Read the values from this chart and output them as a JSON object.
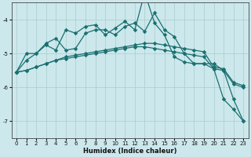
{
  "xlabel": "Humidex (Indice chaleur)",
  "background_color": "#cce8ec",
  "grid_color": "#aacccc",
  "line_color": "#1a7070",
  "xlim": [
    -0.5,
    23.5
  ],
  "ylim": [
    -7.5,
    -3.5
  ],
  "yticks": [
    -7,
    -6,
    -5,
    -4
  ],
  "xticks": [
    0,
    1,
    2,
    3,
    4,
    5,
    6,
    7,
    8,
    9,
    10,
    11,
    12,
    13,
    14,
    15,
    16,
    17,
    18,
    19,
    20,
    21,
    22,
    23
  ],
  "series1_x": [
    0,
    1,
    2,
    3,
    4,
    5,
    6,
    7,
    8,
    9,
    10,
    11,
    12,
    13,
    14,
    15,
    16,
    17,
    18,
    19,
    20,
    21,
    22,
    23
  ],
  "series1_y": [
    -5.55,
    -5.5,
    -5.4,
    -5.3,
    -5.2,
    -5.15,
    -5.1,
    -5.05,
    -5.0,
    -4.95,
    -4.9,
    -4.85,
    -4.8,
    -4.8,
    -4.85,
    -4.9,
    -4.95,
    -5.0,
    -5.05,
    -5.1,
    -5.45,
    -5.5,
    -5.9,
    -6.0
  ],
  "series2_x": [
    0,
    1,
    2,
    3,
    4,
    5,
    6,
    7,
    8,
    9,
    10,
    11,
    12,
    13,
    14,
    15,
    16,
    17,
    18,
    19,
    20,
    21,
    22,
    23
  ],
  "series2_y": [
    -5.55,
    -5.5,
    -5.4,
    -5.3,
    -5.2,
    -5.1,
    -5.05,
    -5.0,
    -4.95,
    -4.9,
    -4.85,
    -4.8,
    -4.75,
    -4.7,
    -4.7,
    -4.75,
    -4.8,
    -4.85,
    -4.9,
    -4.95,
    -5.4,
    -5.45,
    -5.85,
    -5.95
  ],
  "series3_x": [
    0,
    1,
    2,
    3,
    4,
    5,
    6,
    7,
    8,
    9,
    10,
    11,
    12,
    13,
    14,
    15,
    16,
    17,
    18,
    19,
    20,
    21,
    22,
    23
  ],
  "series3_y": [
    -5.55,
    -5.0,
    -5.0,
    -4.7,
    -4.55,
    -4.9,
    -4.85,
    -4.4,
    -4.3,
    -4.3,
    -4.45,
    -4.2,
    -4.1,
    -4.35,
    -3.8,
    -4.3,
    -4.5,
    -5.0,
    -5.3,
    -5.3,
    -5.3,
    -5.5,
    -6.35,
    -7.0
  ],
  "series4_x": [
    0,
    1,
    2,
    3,
    4,
    5,
    6,
    7,
    8,
    9,
    10,
    11,
    12,
    13,
    14,
    15,
    16,
    17,
    18,
    19,
    20,
    21,
    22,
    23
  ],
  "series4_y": [
    -5.55,
    -5.2,
    -5.0,
    -4.75,
    -4.9,
    -4.3,
    -4.4,
    -4.2,
    -4.15,
    -4.45,
    -4.25,
    -4.05,
    -4.3,
    -3.2,
    -4.1,
    -4.45,
    -5.1,
    -5.25,
    -5.3,
    -5.3,
    -5.45,
    -6.35,
    -6.65,
    -7.0
  ]
}
